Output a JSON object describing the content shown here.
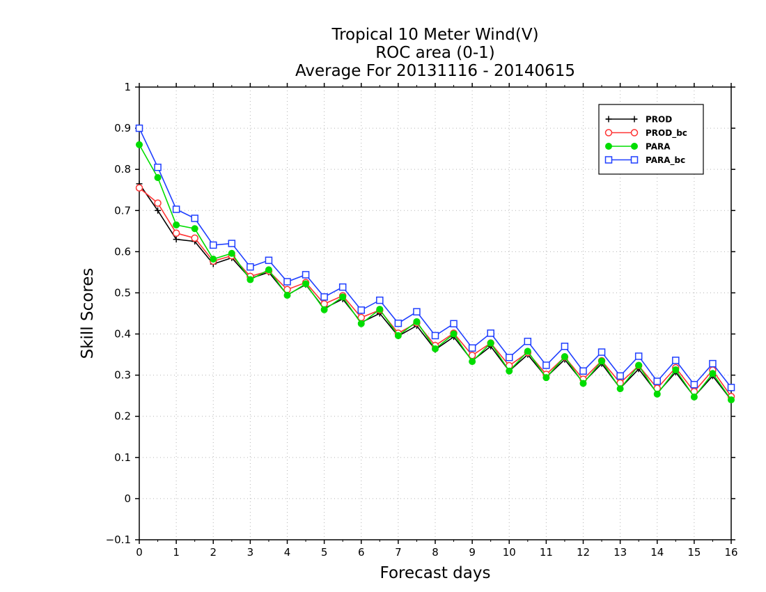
{
  "chart_data": {
    "type": "line",
    "title": "Tropical 10 Meter Wind(V)",
    "subtitle": "ROC area (0-1)",
    "subtitle2": "Average For 20131116 - 20140615",
    "xlabel": "Forecast days",
    "ylabel": "Skill Scores",
    "xlim": [
      0,
      16
    ],
    "ylim": [
      -0.1,
      1
    ],
    "x_ticks": [
      "0",
      "1",
      "2",
      "3",
      "4",
      "5",
      "6",
      "7",
      "8",
      "9",
      "10",
      "11",
      "12",
      "13",
      "14",
      "15",
      "16"
    ],
    "y_ticks": [
      "-0.1",
      "0",
      "0.1",
      "0.2",
      "0.3",
      "0.4",
      "0.5",
      "0.6",
      "0.7",
      "0.8",
      "0.9",
      "1"
    ],
    "grid": true,
    "legend_position": "top-right",
    "x": [
      0,
      0.5,
      1,
      1.5,
      2,
      2.5,
      3,
      3.5,
      4,
      4.5,
      5,
      5.5,
      6,
      6.5,
      7,
      7.5,
      8,
      8.5,
      9,
      9.5,
      10,
      10.5,
      11,
      11.5,
      12,
      12.5,
      13,
      13.5,
      14,
      14.5,
      15,
      15.5,
      16
    ],
    "series": [
      {
        "name": "PROD",
        "color": "#000000",
        "marker": "plus",
        "values": [
          0.765,
          0.7,
          0.63,
          0.625,
          0.57,
          0.585,
          0.535,
          0.55,
          0.495,
          0.52,
          0.462,
          0.485,
          0.428,
          0.45,
          0.395,
          0.42,
          0.362,
          0.393,
          0.335,
          0.37,
          0.31,
          0.35,
          0.295,
          0.338,
          0.282,
          0.328,
          0.268,
          0.315,
          0.256,
          0.307,
          0.248,
          0.298,
          0.24
        ]
      },
      {
        "name": "PROD_bc",
        "color": "#ff3333",
        "marker": "open-circle",
        "values": [
          0.755,
          0.718,
          0.645,
          0.633,
          0.577,
          0.59,
          0.54,
          0.553,
          0.508,
          0.525,
          0.473,
          0.493,
          0.44,
          0.458,
          0.402,
          0.427,
          0.372,
          0.402,
          0.348,
          0.378,
          0.323,
          0.355,
          0.302,
          0.344,
          0.29,
          0.335,
          0.281,
          0.323,
          0.268,
          0.318,
          0.26,
          0.312,
          0.248
        ]
      },
      {
        "name": "PARA",
        "color": "#00dd00",
        "marker": "filled-circle",
        "values": [
          0.86,
          0.78,
          0.665,
          0.656,
          0.582,
          0.596,
          0.532,
          0.556,
          0.494,
          0.522,
          0.459,
          0.49,
          0.425,
          0.46,
          0.396,
          0.43,
          0.364,
          0.4,
          0.333,
          0.378,
          0.31,
          0.358,
          0.294,
          0.345,
          0.28,
          0.334,
          0.267,
          0.324,
          0.254,
          0.313,
          0.247,
          0.304,
          0.24
        ]
      },
      {
        "name": "PARA_bc",
        "color": "#1f3fff",
        "marker": "open-square",
        "values": [
          0.9,
          0.805,
          0.703,
          0.681,
          0.616,
          0.62,
          0.563,
          0.579,
          0.527,
          0.544,
          0.49,
          0.514,
          0.458,
          0.482,
          0.426,
          0.454,
          0.396,
          0.425,
          0.366,
          0.402,
          0.343,
          0.382,
          0.324,
          0.37,
          0.31,
          0.356,
          0.298,
          0.346,
          0.285,
          0.336,
          0.277,
          0.328,
          0.27
        ]
      }
    ]
  }
}
